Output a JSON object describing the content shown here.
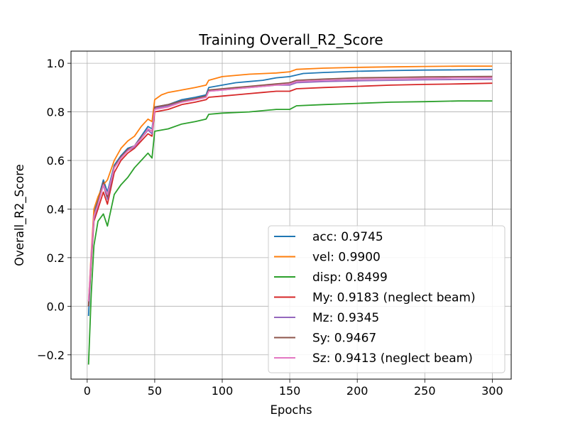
{
  "chart_data": {
    "type": "line",
    "title": "Training Overall_R2_Score",
    "xlabel": "Epochs",
    "ylabel": "Overall_R2_Score",
    "xlim": [
      -12,
      314
    ],
    "ylim": [
      -0.3,
      1.05
    ],
    "xticks": [
      0,
      50,
      100,
      150,
      200,
      250,
      300
    ],
    "xtick_labels": [
      "0",
      "50",
      "100",
      "150",
      "200",
      "250",
      "300"
    ],
    "yticks": [
      -0.2,
      0.0,
      0.2,
      0.4,
      0.6,
      0.8,
      1.0
    ],
    "ytick_labels": [
      "−0.2",
      "0.0",
      "0.2",
      "0.4",
      "0.6",
      "0.8",
      "1.0"
    ],
    "grid": true,
    "legend_position": "lower-right",
    "series": [
      {
        "name": "acc: 0.9745",
        "color": "#1f77b4",
        "points": [
          [
            1,
            -0.04
          ],
          [
            3,
            0.2
          ],
          [
            5,
            0.38
          ],
          [
            8,
            0.44
          ],
          [
            12,
            0.52
          ],
          [
            15,
            0.47
          ],
          [
            20,
            0.58
          ],
          [
            25,
            0.62
          ],
          [
            30,
            0.65
          ],
          [
            35,
            0.66
          ],
          [
            40,
            0.7
          ],
          [
            45,
            0.74
          ],
          [
            48,
            0.73
          ],
          [
            50,
            0.82
          ],
          [
            60,
            0.83
          ],
          [
            70,
            0.85
          ],
          [
            80,
            0.86
          ],
          [
            88,
            0.87
          ],
          [
            90,
            0.9
          ],
          [
            100,
            0.91
          ],
          [
            110,
            0.92
          ],
          [
            120,
            0.925
          ],
          [
            130,
            0.93
          ],
          [
            140,
            0.94
          ],
          [
            150,
            0.945
          ],
          [
            160,
            0.958
          ],
          [
            175,
            0.962
          ],
          [
            200,
            0.967
          ],
          [
            225,
            0.97
          ],
          [
            250,
            0.972
          ],
          [
            275,
            0.973
          ],
          [
            300,
            0.974
          ]
        ]
      },
      {
        "name": "vel: 0.9900",
        "color": "#ff7f0e",
        "points": [
          [
            1,
            0.02
          ],
          [
            3,
            0.22
          ],
          [
            5,
            0.4
          ],
          [
            8,
            0.45
          ],
          [
            12,
            0.5
          ],
          [
            15,
            0.52
          ],
          [
            20,
            0.6
          ],
          [
            25,
            0.65
          ],
          [
            30,
            0.68
          ],
          [
            35,
            0.7
          ],
          [
            40,
            0.74
          ],
          [
            45,
            0.77
          ],
          [
            48,
            0.76
          ],
          [
            50,
            0.85
          ],
          [
            55,
            0.87
          ],
          [
            60,
            0.88
          ],
          [
            70,
            0.89
          ],
          [
            80,
            0.9
          ],
          [
            88,
            0.91
          ],
          [
            90,
            0.93
          ],
          [
            100,
            0.945
          ],
          [
            120,
            0.955
          ],
          [
            140,
            0.96
          ],
          [
            150,
            0.965
          ],
          [
            155,
            0.975
          ],
          [
            175,
            0.98
          ],
          [
            200,
            0.983
          ],
          [
            225,
            0.985
          ],
          [
            250,
            0.987
          ],
          [
            275,
            0.988
          ],
          [
            300,
            0.988
          ]
        ]
      },
      {
        "name": "disp: 0.8499",
        "color": "#2ca02c",
        "points": [
          [
            1,
            -0.24
          ],
          [
            3,
            0.05
          ],
          [
            5,
            0.25
          ],
          [
            8,
            0.35
          ],
          [
            12,
            0.38
          ],
          [
            15,
            0.33
          ],
          [
            20,
            0.46
          ],
          [
            25,
            0.5
          ],
          [
            30,
            0.53
          ],
          [
            35,
            0.57
          ],
          [
            40,
            0.6
          ],
          [
            45,
            0.63
          ],
          [
            48,
            0.61
          ],
          [
            50,
            0.72
          ],
          [
            60,
            0.73
          ],
          [
            70,
            0.75
          ],
          [
            80,
            0.76
          ],
          [
            88,
            0.77
          ],
          [
            90,
            0.79
          ],
          [
            100,
            0.795
          ],
          [
            120,
            0.8
          ],
          [
            140,
            0.81
          ],
          [
            150,
            0.81
          ],
          [
            155,
            0.825
          ],
          [
            175,
            0.83
          ],
          [
            200,
            0.835
          ],
          [
            225,
            0.84
          ],
          [
            250,
            0.842
          ],
          [
            275,
            0.845
          ],
          [
            300,
            0.845
          ]
        ]
      },
      {
        "name": "My: 0.9183 (neglect beam)",
        "color": "#d62728",
        "points": [
          [
            1,
            0.0
          ],
          [
            3,
            0.18
          ],
          [
            5,
            0.35
          ],
          [
            8,
            0.4
          ],
          [
            12,
            0.47
          ],
          [
            15,
            0.42
          ],
          [
            20,
            0.55
          ],
          [
            25,
            0.6
          ],
          [
            30,
            0.63
          ],
          [
            35,
            0.65
          ],
          [
            40,
            0.68
          ],
          [
            45,
            0.71
          ],
          [
            48,
            0.7
          ],
          [
            50,
            0.8
          ],
          [
            60,
            0.81
          ],
          [
            70,
            0.83
          ],
          [
            80,
            0.84
          ],
          [
            88,
            0.85
          ],
          [
            90,
            0.86
          ],
          [
            100,
            0.865
          ],
          [
            110,
            0.87
          ],
          [
            120,
            0.875
          ],
          [
            130,
            0.88
          ],
          [
            140,
            0.885
          ],
          [
            150,
            0.885
          ],
          [
            155,
            0.895
          ],
          [
            175,
            0.9
          ],
          [
            200,
            0.905
          ],
          [
            225,
            0.91
          ],
          [
            250,
            0.913
          ],
          [
            275,
            0.915
          ],
          [
            300,
            0.918
          ]
        ]
      },
      {
        "name": "Mz: 0.9345",
        "color": "#9467bd",
        "points": [
          [
            1,
            0.01
          ],
          [
            3,
            0.19
          ],
          [
            5,
            0.36
          ],
          [
            8,
            0.42
          ],
          [
            12,
            0.5
          ],
          [
            15,
            0.44
          ],
          [
            20,
            0.57
          ],
          [
            25,
            0.61
          ],
          [
            30,
            0.64
          ],
          [
            35,
            0.655
          ],
          [
            40,
            0.69
          ],
          [
            45,
            0.725
          ],
          [
            48,
            0.71
          ],
          [
            50,
            0.815
          ],
          [
            60,
            0.825
          ],
          [
            70,
            0.84
          ],
          [
            80,
            0.85
          ],
          [
            88,
            0.86
          ],
          [
            90,
            0.885
          ],
          [
            100,
            0.89
          ],
          [
            110,
            0.895
          ],
          [
            120,
            0.9
          ],
          [
            130,
            0.905
          ],
          [
            140,
            0.91
          ],
          [
            150,
            0.91
          ],
          [
            155,
            0.92
          ],
          [
            175,
            0.925
          ],
          [
            200,
            0.928
          ],
          [
            225,
            0.93
          ],
          [
            250,
            0.932
          ],
          [
            275,
            0.933
          ],
          [
            300,
            0.934
          ]
        ]
      },
      {
        "name": "Sy: 0.9467",
        "color": "#8c564b",
        "points": [
          [
            1,
            0.0
          ],
          [
            3,
            0.2
          ],
          [
            5,
            0.37
          ],
          [
            8,
            0.43
          ],
          [
            12,
            0.51
          ],
          [
            15,
            0.45
          ],
          [
            20,
            0.575
          ],
          [
            25,
            0.615
          ],
          [
            30,
            0.645
          ],
          [
            35,
            0.66
          ],
          [
            40,
            0.695
          ],
          [
            45,
            0.73
          ],
          [
            48,
            0.72
          ],
          [
            50,
            0.82
          ],
          [
            60,
            0.83
          ],
          [
            70,
            0.845
          ],
          [
            80,
            0.855
          ],
          [
            88,
            0.865
          ],
          [
            90,
            0.89
          ],
          [
            100,
            0.895
          ],
          [
            110,
            0.9
          ],
          [
            120,
            0.905
          ],
          [
            130,
            0.91
          ],
          [
            140,
            0.915
          ],
          [
            150,
            0.92
          ],
          [
            155,
            0.93
          ],
          [
            175,
            0.935
          ],
          [
            200,
            0.94
          ],
          [
            225,
            0.942
          ],
          [
            250,
            0.944
          ],
          [
            275,
            0.945
          ],
          [
            300,
            0.946
          ]
        ]
      },
      {
        "name": "Sz: 0.9413 (neglect beam)",
        "color": "#e377c2",
        "points": [
          [
            1,
            0.02
          ],
          [
            3,
            0.21
          ],
          [
            5,
            0.37
          ],
          [
            8,
            0.42
          ],
          [
            12,
            0.5
          ],
          [
            15,
            0.46
          ],
          [
            20,
            0.57
          ],
          [
            25,
            0.61
          ],
          [
            30,
            0.64
          ],
          [
            35,
            0.66
          ],
          [
            40,
            0.69
          ],
          [
            45,
            0.73
          ],
          [
            48,
            0.72
          ],
          [
            50,
            0.81
          ],
          [
            60,
            0.82
          ],
          [
            70,
            0.84
          ],
          [
            80,
            0.85
          ],
          [
            88,
            0.86
          ],
          [
            90,
            0.885
          ],
          [
            100,
            0.89
          ],
          [
            110,
            0.895
          ],
          [
            120,
            0.9
          ],
          [
            130,
            0.905
          ],
          [
            140,
            0.91
          ],
          [
            150,
            0.915
          ],
          [
            155,
            0.925
          ],
          [
            175,
            0.93
          ],
          [
            200,
            0.934
          ],
          [
            225,
            0.936
          ],
          [
            250,
            0.938
          ],
          [
            275,
            0.94
          ],
          [
            300,
            0.941
          ]
        ]
      }
    ]
  }
}
